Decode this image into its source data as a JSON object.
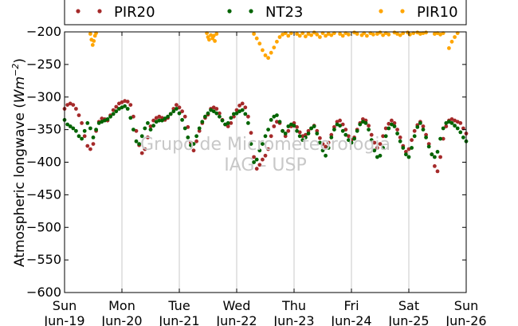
{
  "chart_data": {
    "type": "scatter",
    "title": "",
    "xlabel": "",
    "ylabel": "Atmospheric longwave (Wm⁻²)",
    "ylabel_parts": {
      "text": "Atmospheric longwave (",
      "unit_base": "Wm",
      "unit_exp": "−2",
      "close": ")"
    },
    "ylim": [
      -600,
      -200
    ],
    "yticks": [
      -600,
      -550,
      -500,
      -450,
      -400,
      -350,
      -300,
      -250,
      -200
    ],
    "ytick_labels": [
      "−600",
      "−550",
      "−500",
      "−450",
      "−400",
      "−350",
      "−300",
      "−250",
      "−200"
    ],
    "xlim": [
      0,
      7
    ],
    "xticks": [
      0,
      1,
      2,
      3,
      4,
      5,
      6,
      7
    ],
    "xtick_labels": [
      [
        "Sun",
        "Jun-19"
      ],
      [
        "Mon",
        "Jun-20"
      ],
      [
        "Tue",
        "Jun-21"
      ],
      [
        "Wed",
        "Jun-22"
      ],
      [
        "Thu",
        "Jun-23"
      ],
      [
        "Fri",
        "Jun-24"
      ],
      [
        "Sat",
        "Jun-25"
      ],
      [
        "Sun",
        "Jun-26"
      ]
    ],
    "grid": "vertical",
    "legend_placement": "top",
    "series": [
      {
        "name": "PIR20",
        "color": "#a52a2a",
        "x": [
          0.0,
          0.05,
          0.1,
          0.15,
          0.2,
          0.25,
          0.3,
          0.35,
          0.4,
          0.45,
          0.5,
          0.55,
          0.6,
          0.65,
          0.7,
          0.75,
          0.8,
          0.85,
          0.9,
          0.95,
          1.0,
          1.05,
          1.1,
          1.15,
          1.2,
          1.25,
          1.3,
          1.35,
          1.4,
          1.45,
          1.5,
          1.55,
          1.6,
          1.65,
          1.7,
          1.75,
          1.8,
          1.85,
          1.9,
          1.95,
          2.0,
          2.05,
          2.1,
          2.15,
          2.2,
          2.25,
          2.3,
          2.35,
          2.4,
          2.45,
          2.5,
          2.55,
          2.6,
          2.65,
          2.7,
          2.75,
          2.8,
          2.85,
          2.9,
          2.95,
          3.0,
          3.05,
          3.1,
          3.15,
          3.2,
          3.25,
          3.3,
          3.35,
          3.4,
          3.45,
          3.5,
          3.55,
          3.6,
          3.65,
          3.7,
          3.75,
          3.8,
          3.85,
          3.9,
          3.95,
          4.0,
          4.05,
          4.1,
          4.15,
          4.2,
          4.25,
          4.3,
          4.35,
          4.4,
          4.45,
          4.5,
          4.55,
          4.6,
          4.65,
          4.7,
          4.75,
          4.8,
          4.85,
          4.9,
          4.95,
          5.0,
          5.05,
          5.1,
          5.15,
          5.2,
          5.25,
          5.3,
          5.35,
          5.4,
          5.45,
          5.5,
          5.55,
          5.6,
          5.65,
          5.7,
          5.75,
          5.8,
          5.85,
          5.9,
          5.95,
          6.0,
          6.05,
          6.1,
          6.15,
          6.2,
          6.25,
          6.3,
          6.35,
          6.4,
          6.45,
          6.5,
          6.55,
          6.6,
          6.65,
          6.7,
          6.75,
          6.8,
          6.85,
          6.9,
          6.95,
          7.0
        ],
        "y": [
          -318,
          -312,
          -310,
          -312,
          -318,
          -328,
          -340,
          -360,
          -375,
          -380,
          -372,
          -352,
          -338,
          -333,
          -334,
          -336,
          -328,
          -320,
          -315,
          -310,
          -308,
          -306,
          -307,
          -312,
          -330,
          -352,
          -374,
          -386,
          -380,
          -362,
          -345,
          -336,
          -332,
          -330,
          -332,
          -335,
          -332,
          -326,
          -318,
          -312,
          -316,
          -322,
          -330,
          -346,
          -370,
          -382,
          -368,
          -352,
          -340,
          -332,
          -327,
          -318,
          -316,
          -318,
          -325,
          -335,
          -342,
          -345,
          -340,
          -330,
          -320,
          -313,
          -310,
          -316,
          -330,
          -355,
          -392,
          -410,
          -404,
          -396,
          -390,
          -380,
          -360,
          -345,
          -338,
          -340,
          -352,
          -360,
          -352,
          -345,
          -340,
          -346,
          -354,
          -360,
          -358,
          -352,
          -348,
          -344,
          -352,
          -363,
          -372,
          -376,
          -370,
          -358,
          -346,
          -338,
          -336,
          -342,
          -350,
          -360,
          -366,
          -362,
          -350,
          -340,
          -334,
          -336,
          -344,
          -358,
          -370,
          -378,
          -372,
          -360,
          -348,
          -341,
          -336,
          -340,
          -350,
          -362,
          -375,
          -384,
          -380,
          -366,
          -352,
          -343,
          -338,
          -345,
          -358,
          -372,
          -388,
          -406,
          -414,
          -392,
          -364,
          -345,
          -336,
          -334,
          -336,
          -338,
          -340,
          -348,
          -356
        ]
      },
      {
        "name": "NT23",
        "color": "#006400",
        "x": [
          0.0,
          0.05,
          0.1,
          0.15,
          0.2,
          0.25,
          0.3,
          0.35,
          0.4,
          0.45,
          0.5,
          0.55,
          0.6,
          0.65,
          0.7,
          0.75,
          0.8,
          0.85,
          0.9,
          0.95,
          1.0,
          1.05,
          1.1,
          1.15,
          1.2,
          1.25,
          1.3,
          1.35,
          1.4,
          1.45,
          1.5,
          1.55,
          1.6,
          1.65,
          1.7,
          1.75,
          1.8,
          1.85,
          1.9,
          1.95,
          2.0,
          2.05,
          2.1,
          2.15,
          2.2,
          2.25,
          2.3,
          2.35,
          2.4,
          2.45,
          2.5,
          2.55,
          2.6,
          2.65,
          2.7,
          2.75,
          2.8,
          2.85,
          2.9,
          2.95,
          3.0,
          3.05,
          3.1,
          3.15,
          3.2,
          3.25,
          3.3,
          3.35,
          3.4,
          3.45,
          3.5,
          3.55,
          3.6,
          3.65,
          3.7,
          3.75,
          3.8,
          3.85,
          3.9,
          3.95,
          4.0,
          4.05,
          4.1,
          4.15,
          4.2,
          4.25,
          4.3,
          4.35,
          4.4,
          4.45,
          4.5,
          4.55,
          4.6,
          4.65,
          4.7,
          4.75,
          4.8,
          4.85,
          4.9,
          4.95,
          5.0,
          5.05,
          5.1,
          5.15,
          5.2,
          5.25,
          5.3,
          5.35,
          5.4,
          5.45,
          5.5,
          5.55,
          5.6,
          5.65,
          5.7,
          5.75,
          5.8,
          5.85,
          5.9,
          5.95,
          6.0,
          6.05,
          6.1,
          6.15,
          6.2,
          6.25,
          6.3,
          6.35,
          6.4,
          6.45,
          6.5,
          6.55,
          6.6,
          6.65,
          6.7,
          6.75,
          6.8,
          6.85,
          6.9,
          6.95,
          7.0
        ],
        "y": [
          -335,
          -342,
          -345,
          -348,
          -352,
          -360,
          -364,
          -352,
          -340,
          -348,
          -362,
          -350,
          -340,
          -338,
          -336,
          -334,
          -330,
          -326,
          -322,
          -318,
          -316,
          -314,
          -318,
          -332,
          -350,
          -368,
          -372,
          -360,
          -348,
          -340,
          -350,
          -344,
          -338,
          -336,
          -336,
          -333,
          -330,
          -326,
          -322,
          -318,
          -325,
          -335,
          -348,
          -362,
          -374,
          -372,
          -360,
          -348,
          -338,
          -330,
          -325,
          -320,
          -322,
          -325,
          -330,
          -336,
          -342,
          -340,
          -332,
          -326,
          -325,
          -322,
          -320,
          -326,
          -340,
          -372,
          -400,
          -396,
          -382,
          -372,
          -360,
          -350,
          -335,
          -330,
          -328,
          -338,
          -352,
          -356,
          -345,
          -342,
          -344,
          -352,
          -360,
          -366,
          -362,
          -356,
          -348,
          -345,
          -356,
          -370,
          -382,
          -390,
          -378,
          -362,
          -350,
          -342,
          -344,
          -352,
          -358,
          -366,
          -370,
          -364,
          -352,
          -342,
          -338,
          -340,
          -350,
          -366,
          -382,
          -392,
          -390,
          -378,
          -360,
          -348,
          -342,
          -345,
          -356,
          -368,
          -378,
          -388,
          -392,
          -378,
          -360,
          -346,
          -340,
          -350,
          -362,
          -376,
          -388,
          -392,
          -384,
          -364,
          -348,
          -340,
          -338,
          -340,
          -344,
          -348,
          -354,
          -362,
          -368
        ]
      },
      {
        "name": "PIR10",
        "color": "#ffa500",
        "x": [
          0.45,
          0.47,
          0.49,
          0.51,
          0.53,
          0.55,
          2.48,
          2.5,
          2.52,
          2.55,
          2.58,
          2.6,
          2.62,
          2.65,
          3.3,
          3.35,
          3.4,
          3.45,
          3.5,
          3.55,
          3.6,
          3.65,
          3.7,
          3.75,
          3.8,
          3.85,
          3.9,
          3.95,
          4.05,
          4.1,
          4.15,
          4.2,
          4.25,
          4.3,
          4.35,
          4.4,
          4.45,
          4.5,
          4.55,
          4.6,
          4.65,
          4.7,
          4.8,
          4.85,
          4.9,
          4.95,
          5.05,
          5.1,
          5.18,
          5.22,
          5.27,
          5.33,
          5.38,
          5.45,
          5.5,
          5.55,
          5.6,
          5.65,
          5.75,
          5.8,
          5.85,
          5.9,
          5.98,
          6.02,
          6.08,
          6.15,
          6.2,
          6.25,
          6.3,
          6.45,
          6.5,
          6.55,
          6.6,
          6.7,
          6.75,
          6.8,
          6.85
        ],
        "y": [
          -203,
          -212,
          -220,
          -214,
          -206,
          -202,
          -202,
          -208,
          -212,
          -205,
          -210,
          -206,
          -214,
          -203,
          -203,
          -210,
          -218,
          -228,
          -236,
          -240,
          -232,
          -224,
          -215,
          -208,
          -204,
          -202,
          -206,
          -202,
          -203,
          -206,
          -202,
          -207,
          -203,
          -205,
          -201,
          -204,
          -208,
          -202,
          -206,
          -203,
          -205,
          -202,
          -203,
          -206,
          -202,
          -204,
          -201,
          -203,
          -205,
          -202,
          -206,
          -202,
          -204,
          -203,
          -201,
          -205,
          -202,
          -204,
          -201,
          -203,
          -205,
          -202,
          -201,
          -204,
          -202,
          -201,
          -203,
          -202,
          -201,
          -203,
          -202,
          -204,
          -202,
          -225,
          -215,
          -208,
          -202
        ]
      }
    ]
  },
  "watermark": {
    "line1": "Grupo de Micrometeorologia",
    "line2": "IAG - USP"
  }
}
